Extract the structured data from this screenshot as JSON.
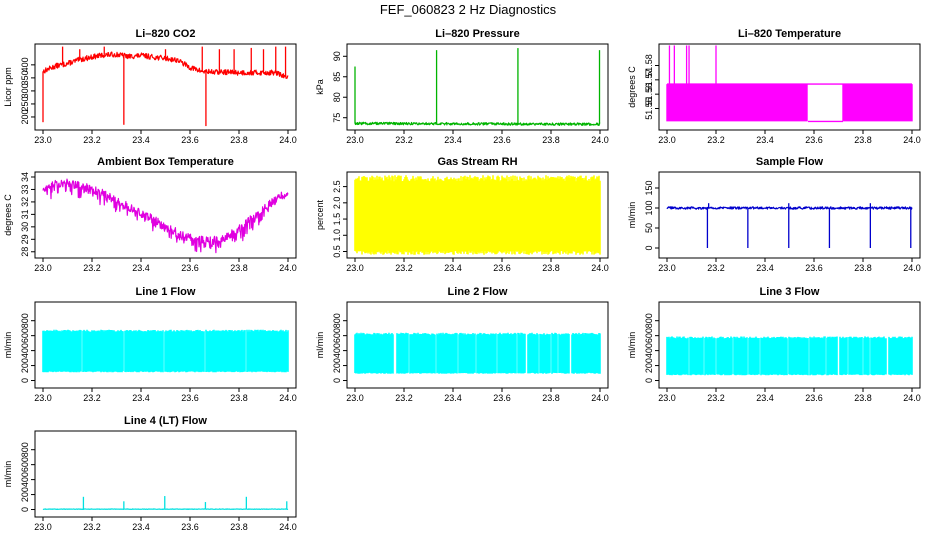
{
  "title": "FEF_060823  2 Hz Diagnostics",
  "chart_data": [
    {
      "type": "line",
      "id": "co2",
      "title": "Li–820 CO2",
      "ylabel": "Licor ppm",
      "xlabel": "",
      "color": "#ff0000",
      "xlim": [
        23.0,
        24.0
      ],
      "ylim": [
        150,
        480
      ],
      "xticks": [
        "23.0",
        "23.2",
        "23.4",
        "23.6",
        "23.8",
        "24.0"
      ],
      "yticks": [
        200,
        250,
        300,
        350,
        400
      ],
      "x": [
        23.0,
        23.05,
        23.1,
        23.15,
        23.2,
        23.25,
        23.3,
        23.35,
        23.4,
        23.45,
        23.5,
        23.55,
        23.6,
        23.65,
        23.7,
        23.75,
        23.8,
        23.85,
        23.9,
        23.95,
        24.0
      ],
      "y": [
        375,
        395,
        405,
        420,
        430,
        438,
        440,
        432,
        436,
        430,
        425,
        418,
        390,
        375,
        372,
        372,
        370,
        370,
        370,
        370,
        350
      ],
      "noise": 10,
      "spikes": [
        {
          "x": 23.0,
          "to": 180
        },
        {
          "x": 23.33,
          "to": 170
        },
        {
          "x": 23.665,
          "to": 165
        },
        {
          "x": 23.08,
          "to": 470
        },
        {
          "x": 23.15,
          "to": 460
        },
        {
          "x": 23.25,
          "to": 470
        },
        {
          "x": 23.5,
          "to": 460
        },
        {
          "x": 23.65,
          "to": 470
        },
        {
          "x": 23.72,
          "to": 460
        },
        {
          "x": 23.78,
          "to": 460
        },
        {
          "x": 23.85,
          "to": 465
        },
        {
          "x": 23.9,
          "to": 460
        },
        {
          "x": 23.95,
          "to": 470
        },
        {
          "x": 23.99,
          "to": 470
        }
      ]
    },
    {
      "type": "line",
      "id": "pressure",
      "title": "Li–820 Pressure",
      "ylabel": "kPa",
      "xlabel": "",
      "color": "#00b400",
      "xlim": [
        23.0,
        24.0
      ],
      "ylim": [
        72,
        93
      ],
      "xticks": [
        "23.0",
        "23.2",
        "23.4",
        "23.6",
        "23.8",
        "24.0"
      ],
      "yticks": [
        75,
        80,
        85,
        90
      ],
      "x": [
        23.0,
        24.0
      ],
      "y": [
        73.6,
        73.4
      ],
      "noise": 0.3,
      "spikes": [
        {
          "x": 23.0,
          "to": 87.5
        },
        {
          "x": 23.333,
          "to": 91.5
        },
        {
          "x": 23.665,
          "to": 92
        },
        {
          "x": 23.998,
          "to": 91.5
        }
      ]
    },
    {
      "type": "line",
      "id": "temperature",
      "title": "Li–820 Temperature",
      "ylabel": "degrees C",
      "xlabel": "",
      "color": "#ff00ff",
      "xlim": [
        23.0,
        24.0
      ],
      "ylim": [
        51.535,
        51.595
      ],
      "xticks": [
        "23.0",
        "23.2",
        "23.4",
        "23.6",
        "23.8",
        "24.0"
      ],
      "yticks": [
        "51.55",
        "51.56",
        "51.57",
        "51.58"
      ],
      "x": [
        23.0,
        24.0
      ],
      "y": [
        51.56,
        51.56
      ],
      "noise": 0,
      "levels": [
        51.541,
        51.567
      ],
      "gap": [
        23.575,
        23.715
      ],
      "spikes": [
        {
          "x": 23.01,
          "to": 51.594
        },
        {
          "x": 23.03,
          "to": 51.594
        },
        {
          "x": 23.08,
          "to": 51.594
        },
        {
          "x": 23.09,
          "to": 51.594
        },
        {
          "x": 23.2,
          "to": 51.594
        }
      ]
    },
    {
      "type": "line",
      "id": "ambient",
      "title": "Ambient Box Temperature",
      "ylabel": "degrees C",
      "xlabel": "",
      "color": "#e000e0",
      "xlim": [
        23.0,
        24.0
      ],
      "ylim": [
        27.5,
        34.4
      ],
      "xticks": [
        "23.0",
        "23.2",
        "23.4",
        "23.6",
        "23.8",
        "24.0"
      ],
      "yticks": [
        28,
        29,
        30,
        31,
        32,
        33,
        34
      ],
      "x": [
        23.0,
        23.05,
        23.1,
        23.15,
        23.2,
        23.25,
        23.3,
        23.35,
        23.4,
        23.45,
        23.5,
        23.55,
        23.6,
        23.65,
        23.7,
        23.75,
        23.8,
        23.85,
        23.9,
        23.95,
        24.0
      ],
      "y": [
        33.0,
        33.5,
        33.5,
        33.3,
        33.0,
        32.6,
        32.1,
        31.6,
        31.1,
        30.6,
        30.0,
        29.5,
        29.1,
        28.9,
        28.9,
        29.2,
        29.8,
        30.6,
        31.4,
        32.2,
        32.9
      ],
      "noise": 0.35,
      "downspikes": 0.9
    },
    {
      "type": "line",
      "id": "rh",
      "title": "Gas Stream RH",
      "ylabel": "percent",
      "xlabel": "",
      "color": "#ffff00",
      "xlim": [
        23.0,
        24.0
      ],
      "ylim": [
        0.3,
        2.95
      ],
      "xticks": [
        "23.0",
        "23.2",
        "23.4",
        "23.6",
        "23.8",
        "24.0"
      ],
      "yticks": [
        "0.5",
        "1.0",
        "1.5",
        "2.0",
        "2.5"
      ],
      "x": [
        23.0,
        24.0
      ],
      "y": [
        2.2,
        2.2
      ],
      "noise": 0,
      "band": [
        0.4,
        2.85
      ]
    },
    {
      "type": "line",
      "id": "sample",
      "title": "Sample Flow",
      "ylabel": "ml/min",
      "xlabel": "",
      "color": "#0000cc",
      "xlim": [
        23.0,
        24.0
      ],
      "ylim": [
        -25,
        190
      ],
      "xticks": [
        "23.0",
        "23.2",
        "23.4",
        "23.6",
        "23.8",
        "24.0"
      ],
      "yticks": [
        0,
        50,
        100,
        150
      ],
      "x": [
        23.0,
        24.0
      ],
      "y": [
        100,
        100
      ],
      "noise": 3,
      "spikes": [
        {
          "x": 23.165,
          "to": 0
        },
        {
          "x": 23.33,
          "to": 0
        },
        {
          "x": 23.497,
          "to": 0
        },
        {
          "x": 23.663,
          "to": 0
        },
        {
          "x": 23.83,
          "to": 0
        },
        {
          "x": 23.995,
          "to": 0
        },
        {
          "x": 23.17,
          "to": 112
        },
        {
          "x": 23.497,
          "to": 112
        },
        {
          "x": 23.83,
          "to": 112
        }
      ]
    },
    {
      "type": "line",
      "id": "line1",
      "title": "Line 1 Flow",
      "ylabel": "ml/min",
      "xlabel": "",
      "color": "#00ffff",
      "xlim": [
        23.0,
        24.0
      ],
      "ylim": [
        -100,
        1050
      ],
      "xticks": [
        "23.0",
        "23.2",
        "23.4",
        "23.6",
        "23.8",
        "24.0"
      ],
      "yticks": [
        0,
        200,
        400,
        600,
        800
      ],
      "x": [
        23.0,
        24.0
      ],
      "y": [
        400,
        400
      ],
      "noise": 0,
      "band": [
        110,
        680
      ],
      "gaps": [
        23.16,
        23.33,
        23.495,
        23.66,
        23.83
      ]
    },
    {
      "type": "line",
      "id": "line2",
      "title": "Line 2 Flow",
      "ylabel": "ml/min",
      "xlabel": "",
      "color": "#00ffff",
      "xlim": [
        23.0,
        24.0
      ],
      "ylim": [
        -100,
        1050
      ],
      "xticks": [
        "23.0",
        "23.2",
        "23.4",
        "23.6",
        "23.8",
        "24.0"
      ],
      "yticks": [
        0,
        200,
        400,
        600,
        800
      ],
      "x": [
        23.0,
        24.0
      ],
      "y": [
        400,
        400
      ],
      "noise": 0,
      "band": [
        90,
        640
      ],
      "gaps": [
        23.16,
        23.165,
        23.22,
        23.33,
        23.42,
        23.495,
        23.58,
        23.66,
        23.7,
        23.75,
        23.8,
        23.83,
        23.88
      ]
    },
    {
      "type": "line",
      "id": "line3",
      "title": "Line 3 Flow",
      "ylabel": "ml/min",
      "xlabel": "",
      "color": "#00ffff",
      "xlim": [
        23.0,
        24.0
      ],
      "ylim": [
        -100,
        1050
      ],
      "xticks": [
        "23.0",
        "23.2",
        "23.4",
        "23.6",
        "23.8",
        "24.0"
      ],
      "yticks": [
        0,
        200,
        400,
        600,
        800
      ],
      "x": [
        23.0,
        24.0
      ],
      "y": [
        400,
        400
      ],
      "noise": 0,
      "band": [
        70,
        590
      ],
      "gaps": [
        23.09,
        23.15,
        23.2,
        23.27,
        23.33,
        23.38,
        23.495,
        23.58,
        23.65,
        23.7,
        23.74,
        23.8,
        23.83,
        23.9
      ]
    },
    {
      "type": "line",
      "id": "line4",
      "title": "Line 4 (LT) Flow",
      "ylabel": "ml/min",
      "xlabel": "",
      "color": "#00e0e0",
      "xlim": [
        23.0,
        24.0
      ],
      "ylim": [
        -100,
        1050
      ],
      "xticks": [
        "23.0",
        "23.2",
        "23.4",
        "23.6",
        "23.8",
        "24.0"
      ],
      "yticks": [
        0,
        200,
        400,
        600,
        800
      ],
      "x": [
        23.0,
        24.0
      ],
      "y": [
        5,
        5
      ],
      "noise": 3,
      "spikes": [
        {
          "x": 23.165,
          "to": 170
        },
        {
          "x": 23.33,
          "to": 110
        },
        {
          "x": 23.497,
          "to": 180
        },
        {
          "x": 23.663,
          "to": 100
        },
        {
          "x": 23.83,
          "to": 170
        },
        {
          "x": 23.995,
          "to": 110
        }
      ]
    }
  ]
}
